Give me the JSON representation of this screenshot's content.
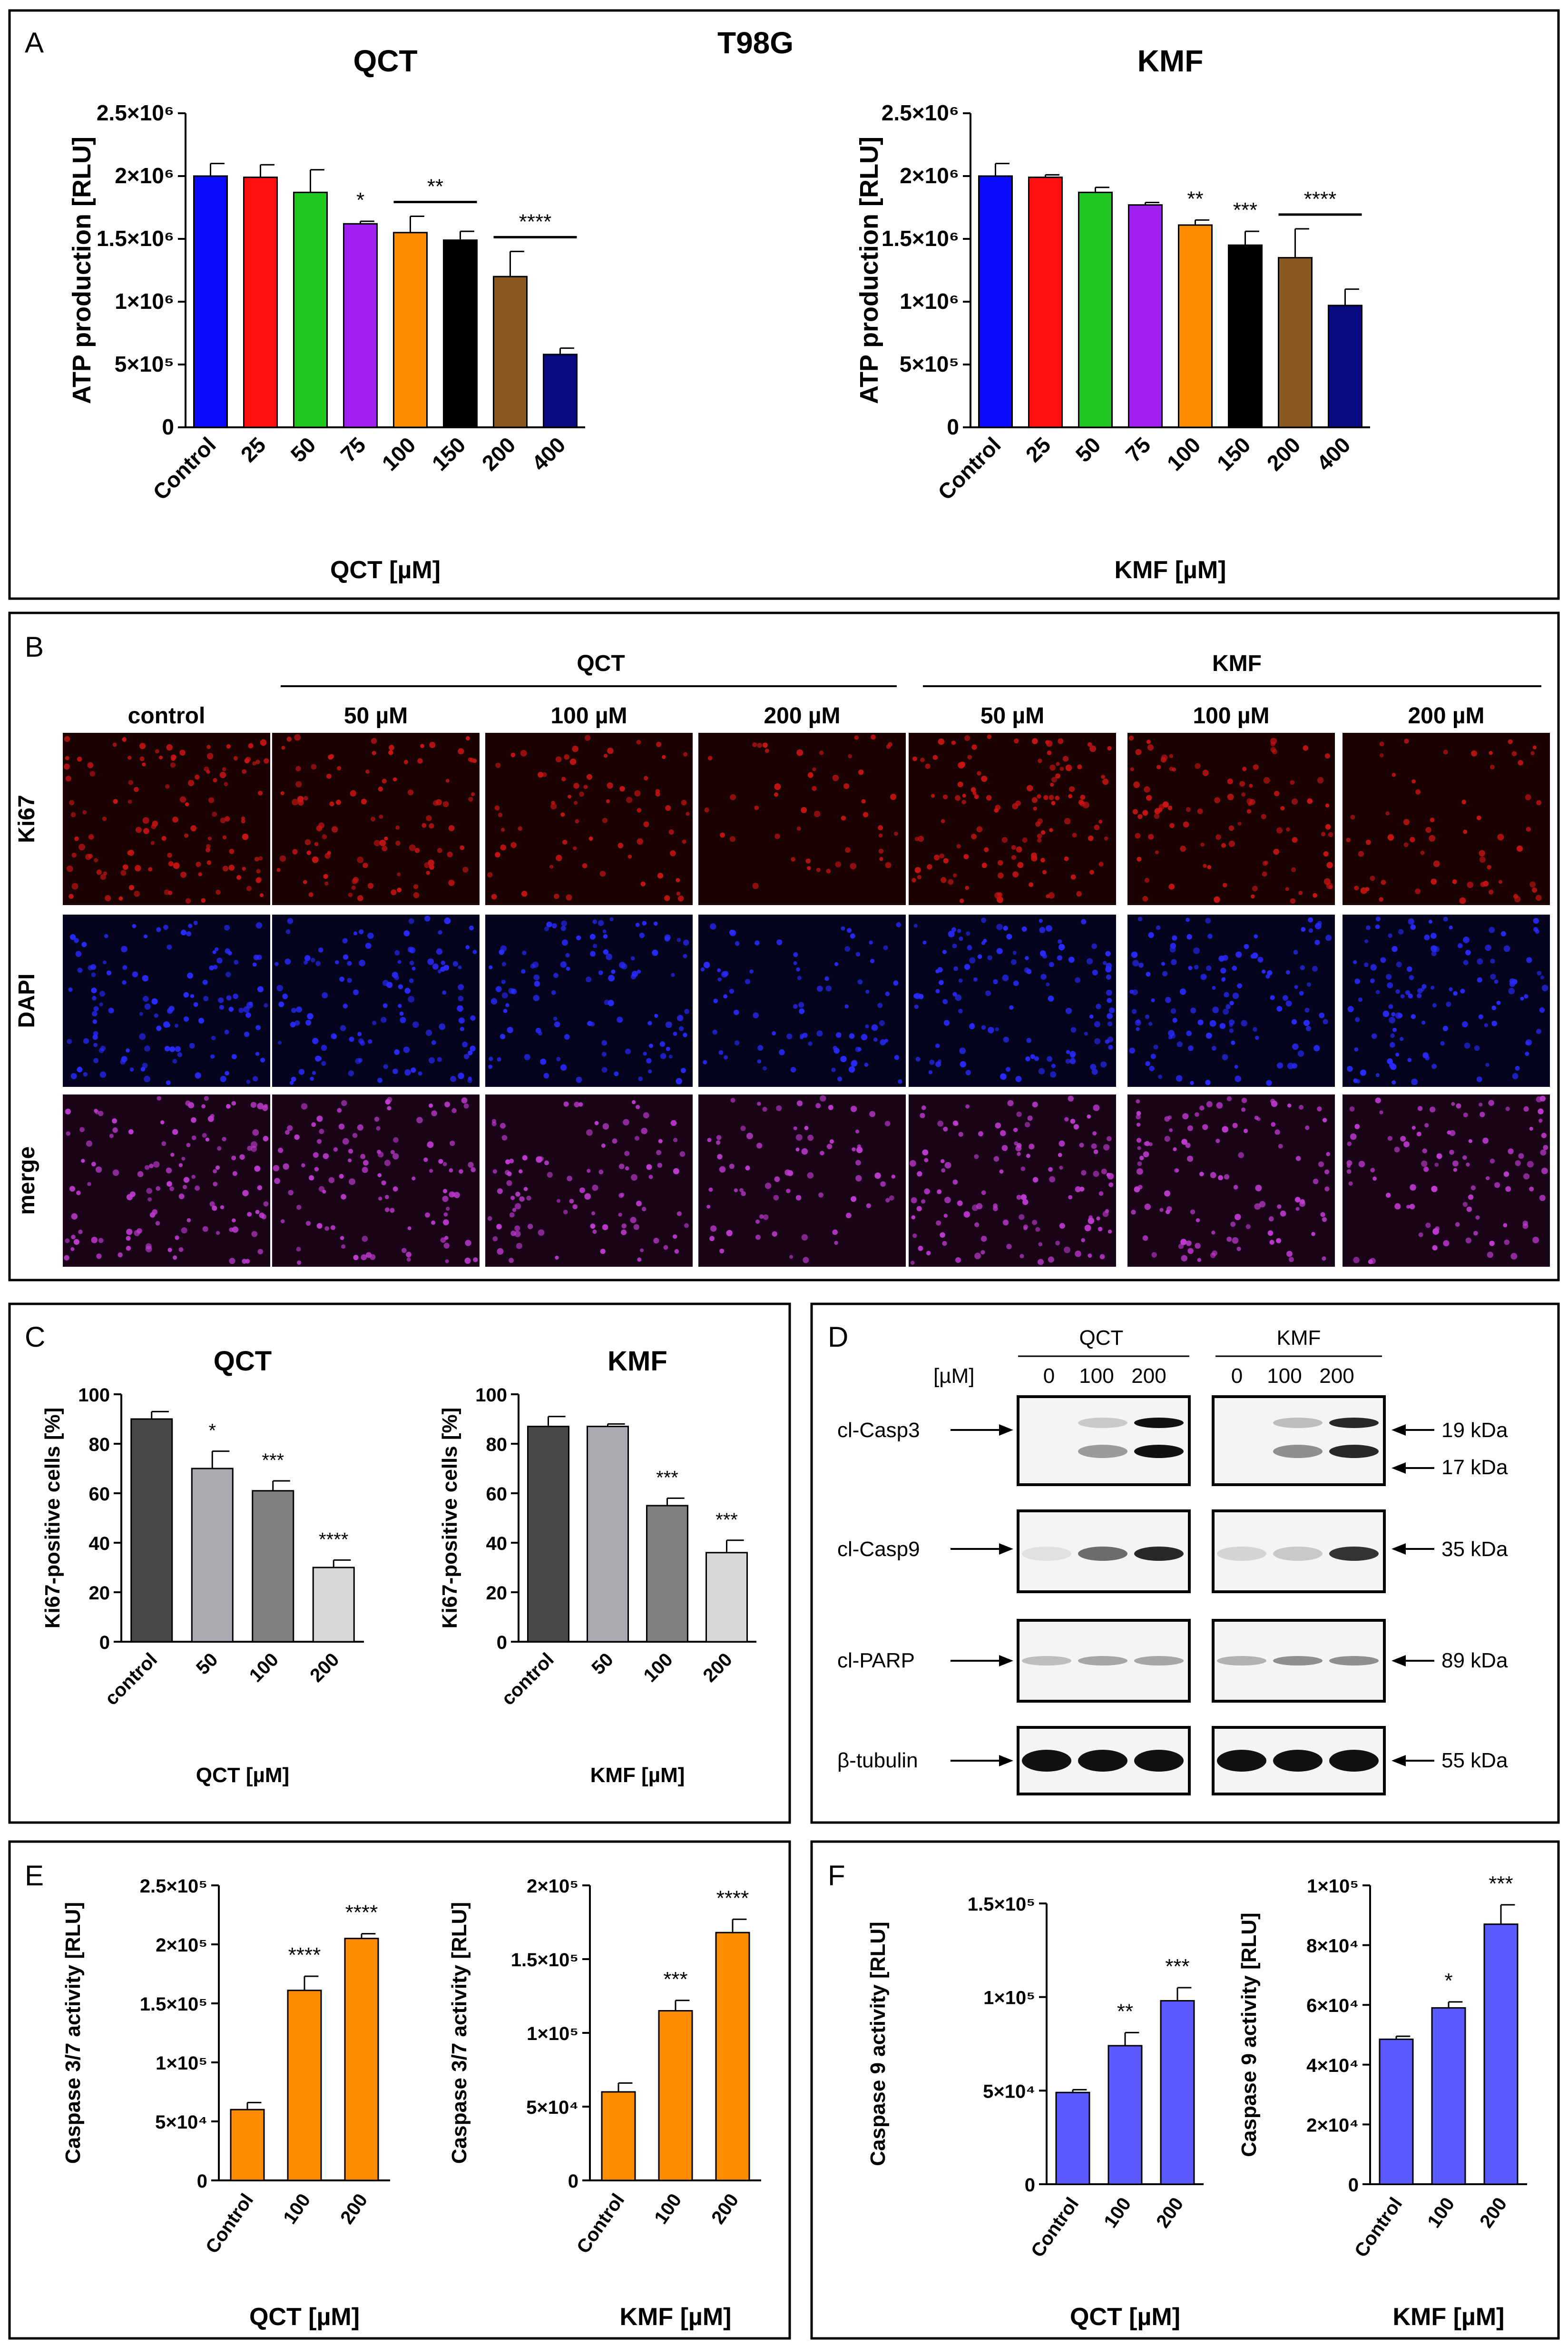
{
  "figure_title": "T98G",
  "panels": {
    "A": "A",
    "B": "B",
    "C": "C",
    "D": "D",
    "E": "E",
    "F": "F"
  },
  "chart_data": [
    {
      "id": "A_QCT",
      "type": "bar",
      "title": "QCT",
      "xlabel": "QCT [µM]",
      "ylabel": "ATP production [RLU]",
      "categories": [
        "Control",
        "25",
        "50",
        "75",
        "100",
        "150",
        "200",
        "400"
      ],
      "values": [
        2000000,
        1990000,
        1870000,
        1620000,
        1550000,
        1490000,
        1200000,
        580000
      ],
      "errors": [
        100000,
        100000,
        180000,
        20000,
        130000,
        70000,
        200000,
        50000
      ],
      "colors": [
        "#0a0aff",
        "#ff1010",
        "#1ec81e",
        "#a020f0",
        "#ff8c00",
        "#000000",
        "#8b5a1e",
        "#0a0a80"
      ],
      "ylim": [
        0,
        2500000
      ],
      "yticks": [
        0,
        500000,
        1000000,
        1500000,
        2000000,
        2500000
      ],
      "yticklabels": [
        "0",
        "5×10⁵",
        "1×10⁶",
        "1.5×10⁶",
        "2×10⁶",
        "2.5×10⁶"
      ],
      "annotations": [
        {
          "label": "*",
          "from": 3,
          "to": 3
        },
        {
          "label": "**",
          "from": 4,
          "to": 5
        },
        {
          "label": "****",
          "from": 6,
          "to": 7
        }
      ]
    },
    {
      "id": "A_KMF",
      "type": "bar",
      "title": "KMF",
      "xlabel": "KMF [µM]",
      "ylabel": "ATP production [RLU]",
      "categories": [
        "Control",
        "25",
        "50",
        "75",
        "100",
        "150",
        "200",
        "400"
      ],
      "values": [
        2000000,
        1990000,
        1870000,
        1770000,
        1610000,
        1450000,
        1350000,
        970000
      ],
      "errors": [
        100000,
        20000,
        40000,
        20000,
        40000,
        110000,
        230000,
        130000
      ],
      "colors": [
        "#0a0aff",
        "#ff1010",
        "#1ec81e",
        "#a020f0",
        "#ff8c00",
        "#000000",
        "#8b5a1e",
        "#0a0a80"
      ],
      "ylim": [
        0,
        2500000
      ],
      "yticks": [
        0,
        500000,
        1000000,
        1500000,
        2000000,
        2500000
      ],
      "yticklabels": [
        "0",
        "5×10⁵",
        "1×10⁶",
        "1.5×10⁶",
        "2×10⁶",
        "2.5×10⁶"
      ],
      "annotations": [
        {
          "label": "**",
          "from": 4,
          "to": 4
        },
        {
          "label": "***",
          "from": 5,
          "to": 5
        },
        {
          "label": "****",
          "from": 6,
          "to": 7
        }
      ]
    },
    {
      "id": "C_QCT",
      "type": "bar",
      "title": "QCT",
      "xlabel": "QCT [µM]",
      "ylabel": "Ki67-positive cells [%]",
      "categories": [
        "control",
        "50",
        "100",
        "200"
      ],
      "values": [
        90,
        70,
        61,
        30
      ],
      "errors": [
        3,
        7,
        4,
        3
      ],
      "colors": [
        "#4a4a4a",
        "#a9a9b0",
        "#808080",
        "#d8d8d8"
      ],
      "ylim": [
        0,
        100
      ],
      "yticks": [
        0,
        20,
        40,
        60,
        80,
        100
      ],
      "yticklabels": [
        "0",
        "20",
        "40",
        "60",
        "80",
        "100"
      ],
      "annotations": [
        {
          "label": "*",
          "from": 1,
          "to": 1
        },
        {
          "label": "***",
          "from": 2,
          "to": 2
        },
        {
          "label": "****",
          "from": 3,
          "to": 3
        }
      ]
    },
    {
      "id": "C_KMF",
      "type": "bar",
      "title": "KMF",
      "xlabel": "KMF [µM]",
      "ylabel": "Ki67-positive cells [%]",
      "categories": [
        "control",
        "50",
        "100",
        "200"
      ],
      "values": [
        87,
        87,
        55,
        36
      ],
      "errors": [
        4,
        1,
        3,
        5
      ],
      "colors": [
        "#4a4a4a",
        "#a9a9b0",
        "#808080",
        "#d8d8d8"
      ],
      "ylim": [
        0,
        100
      ],
      "yticks": [
        0,
        20,
        40,
        60,
        80,
        100
      ],
      "yticklabels": [
        "0",
        "20",
        "40",
        "60",
        "80",
        "100"
      ],
      "annotations": [
        {
          "label": "***",
          "from": 2,
          "to": 2
        },
        {
          "label": "***",
          "from": 3,
          "to": 3
        }
      ]
    },
    {
      "id": "E_QCT",
      "type": "bar",
      "title": "",
      "xlabel": "QCT [µM]",
      "ylabel": "Caspase 3/7 activity [RLU]",
      "categories": [
        "Control",
        "100",
        "200"
      ],
      "values": [
        60000,
        161000,
        205000
      ],
      "errors": [
        6000,
        12000,
        4000
      ],
      "colors": [
        "#ff8c00",
        "#ff8c00",
        "#ff8c00"
      ],
      "ylim": [
        0,
        250000
      ],
      "yticks": [
        0,
        50000,
        100000,
        150000,
        200000,
        250000
      ],
      "yticklabels": [
        "0",
        "5×10⁴",
        "1×10⁵",
        "1.5×10⁵",
        "2×10⁵",
        "2.5×10⁵"
      ],
      "annotations": [
        {
          "label": "****",
          "from": 1,
          "to": 1
        },
        {
          "label": "****",
          "from": 2,
          "to": 2
        }
      ]
    },
    {
      "id": "E_KMF",
      "type": "bar",
      "title": "",
      "xlabel": "KMF [µM]",
      "ylabel": "Caspase 3/7 activity [RLU]",
      "categories": [
        "Control",
        "100",
        "200"
      ],
      "values": [
        60000,
        115000,
        168000
      ],
      "errors": [
        6000,
        7000,
        9000
      ],
      "colors": [
        "#ff8c00",
        "#ff8c00",
        "#ff8c00"
      ],
      "ylim": [
        0,
        200000
      ],
      "yticks": [
        0,
        50000,
        100000,
        150000,
        200000
      ],
      "yticklabels": [
        "0",
        "5×10⁴",
        "1×10⁵",
        "1.5×10⁵",
        "2×10⁵"
      ],
      "annotations": [
        {
          "label": "***",
          "from": 1,
          "to": 1
        },
        {
          "label": "****",
          "from": 2,
          "to": 2
        }
      ]
    },
    {
      "id": "F_QCT",
      "type": "bar",
      "title": "",
      "xlabel": "QCT [µM]",
      "ylabel": "Caspase 9 activity [RLU]",
      "categories": [
        "Control",
        "100",
        "200"
      ],
      "values": [
        49000,
        74000,
        98000
      ],
      "errors": [
        1500,
        7000,
        7000
      ],
      "colors": [
        "#5a5aff",
        "#5a5aff",
        "#5a5aff"
      ],
      "ylim": [
        0,
        150000
      ],
      "yticks": [
        0,
        50000,
        100000,
        150000
      ],
      "yticklabels": [
        "0",
        "5×10⁴",
        "1×10⁵",
        "1.5×10⁵"
      ],
      "annotations": [
        {
          "label": "**",
          "from": 1,
          "to": 1
        },
        {
          "label": "***",
          "from": 2,
          "to": 2
        }
      ]
    },
    {
      "id": "F_KMF",
      "type": "bar",
      "title": "",
      "xlabel": "KMF [µM]",
      "ylabel": "Caspase 9 activity [RLU]",
      "categories": [
        "Control",
        "100",
        "200"
      ],
      "values": [
        48500,
        59000,
        87000
      ],
      "errors": [
        1000,
        2000,
        6500
      ],
      "colors": [
        "#5a5aff",
        "#5a5aff",
        "#5a5aff"
      ],
      "ylim": [
        0,
        100000
      ],
      "yticks": [
        0,
        20000,
        40000,
        60000,
        80000,
        100000
      ],
      "yticklabels": [
        "0",
        "2×10⁴",
        "4×10⁴",
        "6×10⁴",
        "8×10⁴",
        "1×10⁵"
      ],
      "annotations": [
        {
          "label": "*",
          "from": 1,
          "to": 1
        },
        {
          "label": "***",
          "from": 2,
          "to": 2
        }
      ]
    }
  ],
  "microscopy": {
    "group_qct": "QCT",
    "group_kmf": "KMF",
    "columns": [
      "control",
      "50 µM",
      "100 µM",
      "200 µM",
      "50 µM",
      "100 µM",
      "200 µM"
    ],
    "rows": [
      "Ki67",
      "DAPI",
      "merge"
    ],
    "row_colors": [
      "#c81414",
      "#2a2aff",
      "#c03ad0"
    ],
    "row_bg": [
      "#1c0303",
      "#04041e",
      "#1a0418"
    ],
    "cell_density": [
      [
        1.0,
        0.8,
        0.6,
        0.4,
        1.0,
        0.8,
        0.5
      ],
      [
        1.0,
        1.0,
        0.9,
        0.7,
        1.0,
        1.0,
        1.0
      ],
      [
        1.0,
        0.9,
        0.8,
        0.6,
        1.0,
        0.9,
        0.8
      ]
    ]
  },
  "western_blot": {
    "group_qct": "QCT",
    "group_kmf": "KMF",
    "unit": "[µM]",
    "doses": [
      "0",
      "100",
      "200"
    ],
    "proteins": [
      "cl-Casp3",
      "cl-Casp9",
      "cl-PARP",
      "β-tubulin"
    ],
    "sizes": [
      "19 kDa",
      "17 kDa",
      "35 kDa",
      "89 kDa",
      "55 kDa"
    ],
    "band_intensity": {
      "casp3_top": [
        [
          0,
          0.15,
          0.95
        ],
        [
          0,
          0.2,
          0.85
        ]
      ],
      "casp3_bottom": [
        [
          0,
          0.35,
          0.95
        ],
        [
          0,
          0.4,
          0.85
        ]
      ],
      "casp9": [
        [
          0.05,
          0.55,
          0.85
        ],
        [
          0.1,
          0.15,
          0.8
        ]
      ],
      "parp": [
        [
          0.2,
          0.3,
          0.3
        ],
        [
          0.25,
          0.4,
          0.4
        ]
      ],
      "tubulin": [
        [
          0.95,
          0.95,
          0.95
        ],
        [
          0.95,
          0.95,
          0.95
        ]
      ]
    }
  }
}
